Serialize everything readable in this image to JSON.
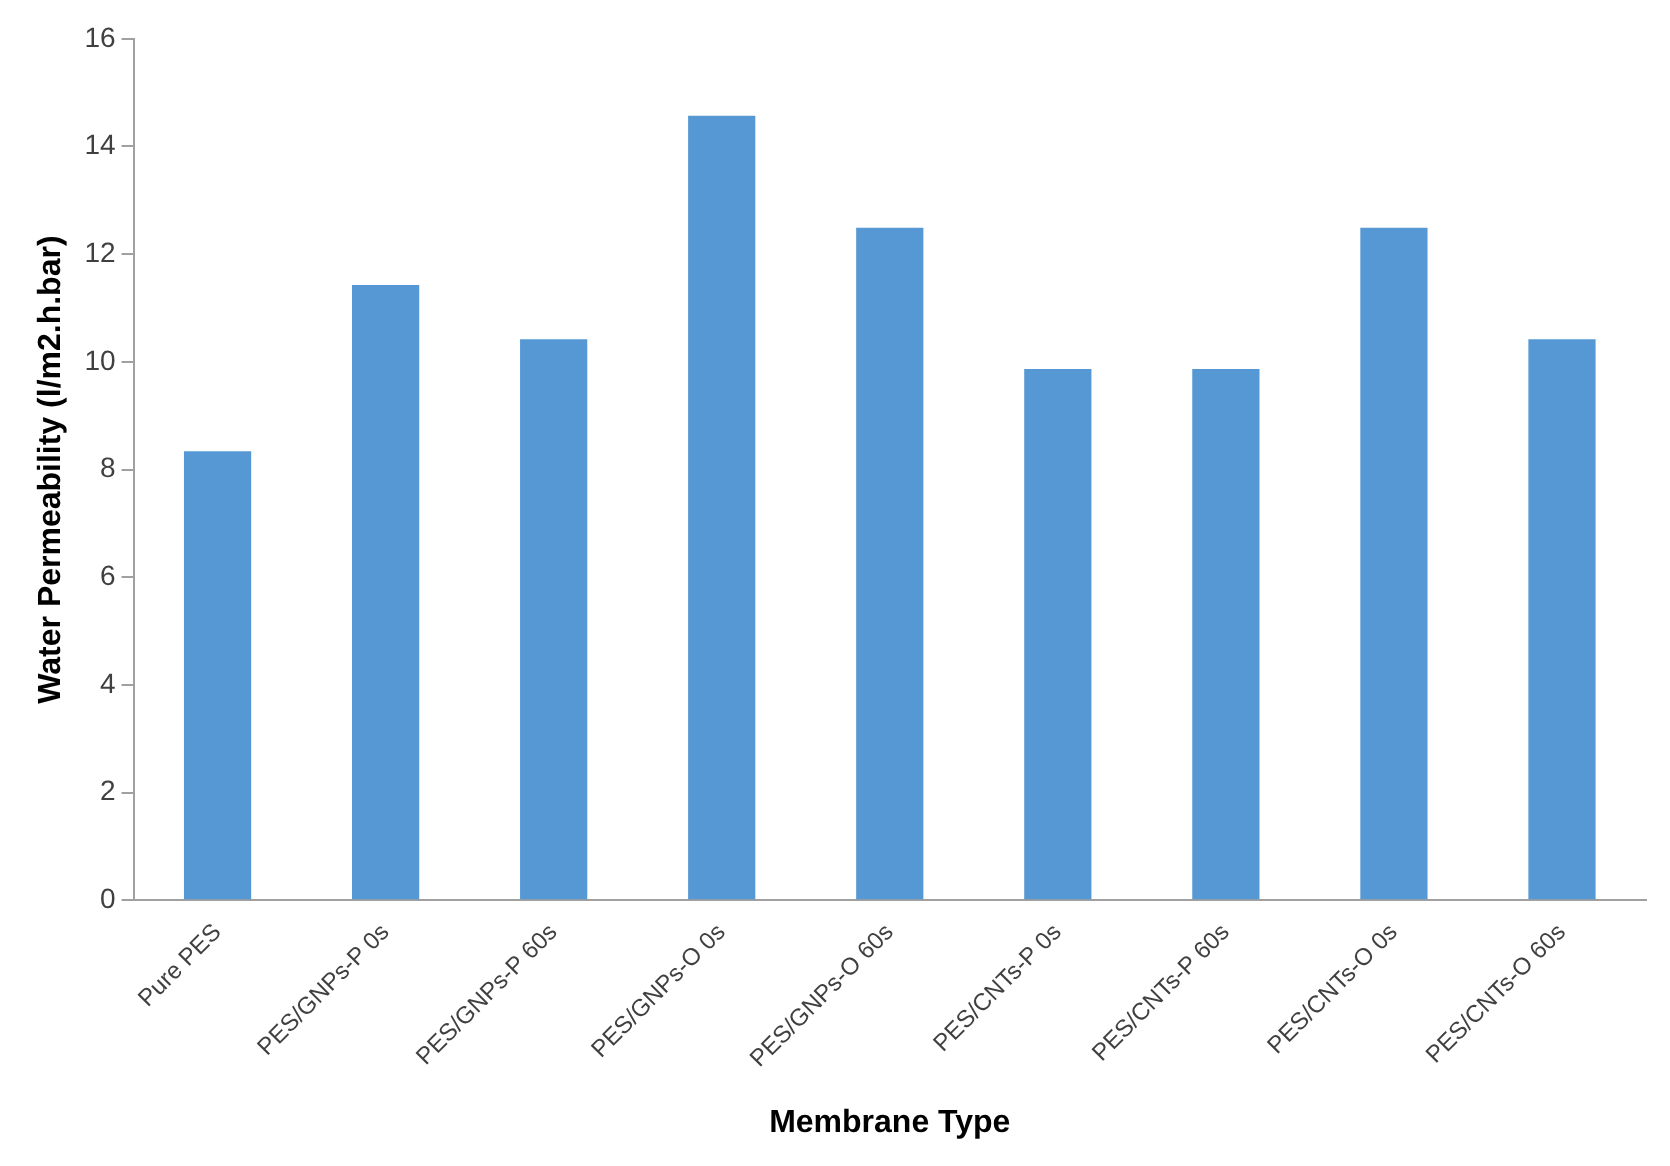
{
  "chart_data": {
    "type": "bar",
    "xlabel": "Membrane Type",
    "ylabel": "Water Permeability (l/m2.h.bar)",
    "categories": [
      "Pure PES",
      "PES/GNPs-P 0s",
      "PES/GNPs-P 60s",
      "PES/GNPs-O 0s",
      "PES/GNPs-O 60s",
      "PES/CNTs-P 0s",
      "PES/CNTs-P 60s",
      "PES/CNTs-O 0s",
      "PES/CNTs-O 60s"
    ],
    "values": [
      8.34,
      11.43,
      10.42,
      14.57,
      12.49,
      9.87,
      9.87,
      12.49,
      10.42
    ],
    "color": "#5698d3",
    "ylim": [
      0,
      16
    ],
    "yticks": [
      0,
      2,
      4,
      6,
      8,
      10,
      12,
      14,
      16
    ],
    "grid": false,
    "legend": false
  }
}
